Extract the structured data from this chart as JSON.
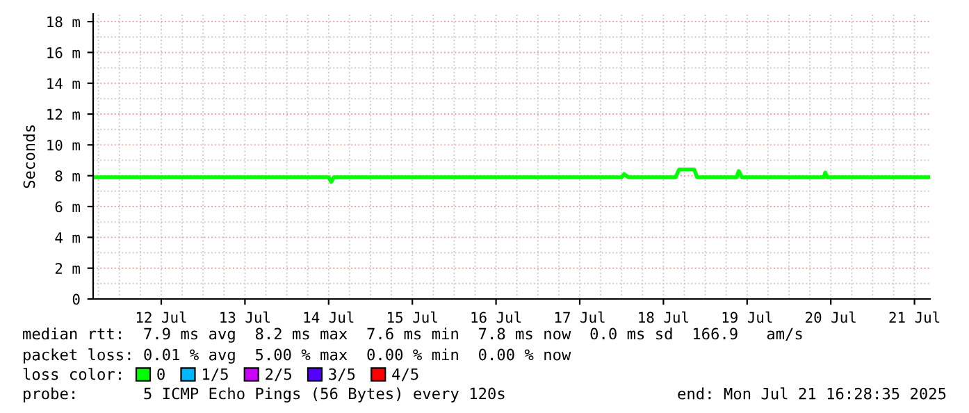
{
  "chart_data": {
    "type": "line",
    "ylabel": "Seconds",
    "x": [
      "2025-07-11T16:28",
      "2025-07-12T06:00",
      "2025-07-12T18:00",
      "2025-07-13T06:00",
      "2025-07-13T18:00",
      "2025-07-14T06:00",
      "2025-07-14T12:00",
      "2025-07-14T12:45",
      "2025-07-14T13:30",
      "2025-07-14T18:00",
      "2025-07-15T06:00",
      "2025-07-15T18:00",
      "2025-07-16T06:00",
      "2025-07-16T18:00",
      "2025-07-17T06:00",
      "2025-07-17T20:00",
      "2025-07-18T00:00",
      "2025-07-18T00:45",
      "2025-07-18T02:00",
      "2025-07-18T10:00",
      "2025-07-18T15:30",
      "2025-07-18T16:30",
      "2025-07-18T20:50",
      "2025-07-18T21:40",
      "2025-07-19T06:00",
      "2025-07-19T09:00",
      "2025-07-19T09:36",
      "2025-07-19T10:30",
      "2025-07-19T18:00",
      "2025-07-20T06:00",
      "2025-07-20T10:00",
      "2025-07-20T10:24",
      "2025-07-20T11:00",
      "2025-07-20T18:00",
      "2025-07-21T06:00",
      "2025-07-21T16:28"
    ],
    "series": [
      {
        "name": "0",
        "color": "#00ff00",
        "values": [
          7.9,
          7.9,
          7.9,
          7.9,
          7.9,
          7.9,
          7.9,
          7.6,
          7.9,
          7.9,
          7.9,
          7.9,
          7.9,
          7.9,
          7.9,
          7.9,
          7.9,
          8.1,
          7.9,
          7.9,
          7.9,
          8.4,
          8.4,
          7.9,
          7.9,
          7.9,
          8.3,
          7.9,
          7.9,
          7.9,
          7.9,
          8.2,
          7.9,
          7.9,
          7.9,
          7.9
        ]
      },
      {
        "name": "1/5",
        "color": "#00b8ff",
        "values": [
          null,
          null,
          null,
          null,
          null,
          null,
          null,
          null,
          null,
          null,
          null,
          null,
          null,
          null,
          null,
          null,
          null,
          null,
          null,
          null,
          null,
          null,
          null,
          null,
          null,
          null,
          null,
          null,
          null,
          null,
          null,
          null,
          null,
          null,
          null,
          null
        ]
      },
      {
        "name": "2/5",
        "color": "#cc00ff",
        "values": [
          null,
          null,
          null,
          null,
          null,
          null,
          null,
          null,
          null,
          null,
          null,
          null,
          null,
          null,
          null,
          null,
          null,
          null,
          null,
          null,
          null,
          null,
          null,
          null,
          null,
          null,
          null,
          null,
          null,
          null,
          null,
          null,
          null,
          null,
          null,
          null
        ]
      },
      {
        "name": "3/5",
        "color": "#5500ff",
        "values": [
          null,
          null,
          null,
          null,
          null,
          null,
          null,
          null,
          null,
          null,
          null,
          null,
          null,
          null,
          null,
          null,
          null,
          null,
          null,
          null,
          null,
          null,
          null,
          null,
          null,
          null,
          null,
          null,
          null,
          null,
          null,
          null,
          null,
          null,
          null,
          null
        ]
      },
      {
        "name": "4/5",
        "color": "#ff0000",
        "values": [
          null,
          null,
          null,
          null,
          null,
          null,
          null,
          null,
          null,
          null,
          null,
          null,
          null,
          null,
          null,
          null,
          null,
          null,
          null,
          null,
          null,
          null,
          null,
          null,
          null,
          null,
          null,
          null,
          null,
          null,
          null,
          null,
          null,
          null,
          null,
          null
        ]
      }
    ],
    "xlim": [
      "2025-07-11T16:28",
      "2025-07-21T16:28"
    ],
    "xticks": [
      {
        "value": "2025-07-12T12:00",
        "label": "12 Jul"
      },
      {
        "value": "2025-07-13T12:00",
        "label": "13 Jul"
      },
      {
        "value": "2025-07-14T12:00",
        "label": "14 Jul"
      },
      {
        "value": "2025-07-15T12:00",
        "label": "15 Jul"
      },
      {
        "value": "2025-07-16T12:00",
        "label": "16 Jul"
      },
      {
        "value": "2025-07-17T12:00",
        "label": "17 Jul"
      },
      {
        "value": "2025-07-18T12:00",
        "label": "18 Jul"
      },
      {
        "value": "2025-07-19T12:00",
        "label": "19 Jul"
      },
      {
        "value": "2025-07-20T12:00",
        "label": "20 Jul"
      },
      {
        "value": "2025-07-21T12:00",
        "label": "21 Jul"
      }
    ],
    "ylim": [
      0,
      18.5
    ],
    "yticks": [
      0,
      {
        "value": 2,
        "label": "2 m"
      },
      {
        "value": 4,
        "label": "4 m"
      },
      {
        "value": 6,
        "label": "6 m"
      },
      {
        "value": 8,
        "label": "8 m"
      },
      {
        "value": 10,
        "label": "10 m"
      },
      {
        "value": 12,
        "label": "12 m"
      },
      {
        "value": 14,
        "label": "14 m"
      },
      {
        "value": 16,
        "label": "16 m"
      },
      {
        "value": 18,
        "label": "18 m"
      }
    ],
    "grid": true,
    "legend": "bottom",
    "marker": "none",
    "line_style": "solid",
    "annotations": [
      "median rtt:  7.9 ms avg  8.2 ms max  7.6 ms min  7.8 ms now  0.0 ms sd  166.9   am/s",
      "packet loss: 0.01 % avg  5.00 % max  0.00 % min  0.00 % now",
      "loss color:",
      "probe:       5 ICMP Echo Pings (56 Bytes) every 120s",
      "end: Mon Jul 21 16:28:35 2025"
    ]
  }
}
